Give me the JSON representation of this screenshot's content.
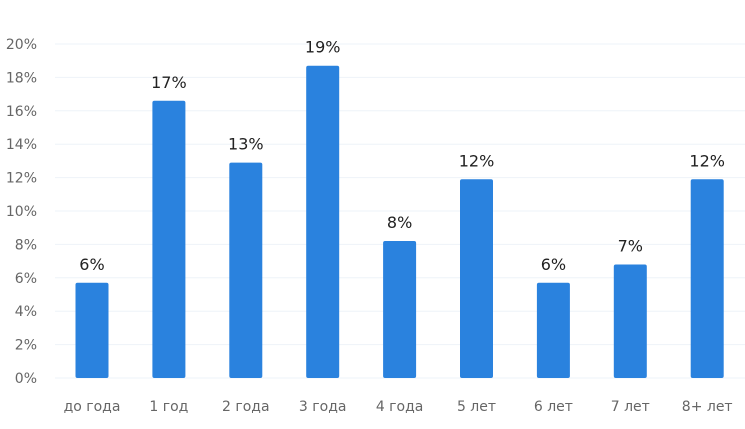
{
  "chart_data": {
    "type": "bar",
    "title": "",
    "xlabel": "",
    "ylabel": "",
    "categories": [
      "до года",
      "1 год",
      "2 года",
      "3 года",
      "4 года",
      "5 лет",
      "6 лет",
      "7 лет",
      "8+ лет"
    ],
    "values": [
      5.7,
      16.6,
      12.9,
      18.7,
      8.2,
      11.9,
      5.7,
      6.8,
      11.9
    ],
    "data_labels": [
      "6%",
      "17%",
      "13%",
      "19%",
      "8%",
      "12%",
      "6%",
      "7%",
      "12%"
    ],
    "ylim": [
      0,
      20
    ],
    "yticks": [
      0,
      2,
      4,
      6,
      8,
      10,
      12,
      14,
      16,
      18,
      20
    ],
    "ytick_labels": [
      "0%",
      "2%",
      "4%",
      "6%",
      "8%",
      "10%",
      "12%",
      "14%",
      "16%",
      "18%",
      "20%"
    ],
    "grid": true,
    "legend": "none",
    "colors": {
      "bar": "#2a82de",
      "grid": "#eef3f8",
      "axis_text": "#666666",
      "label_text": "#222222"
    }
  }
}
